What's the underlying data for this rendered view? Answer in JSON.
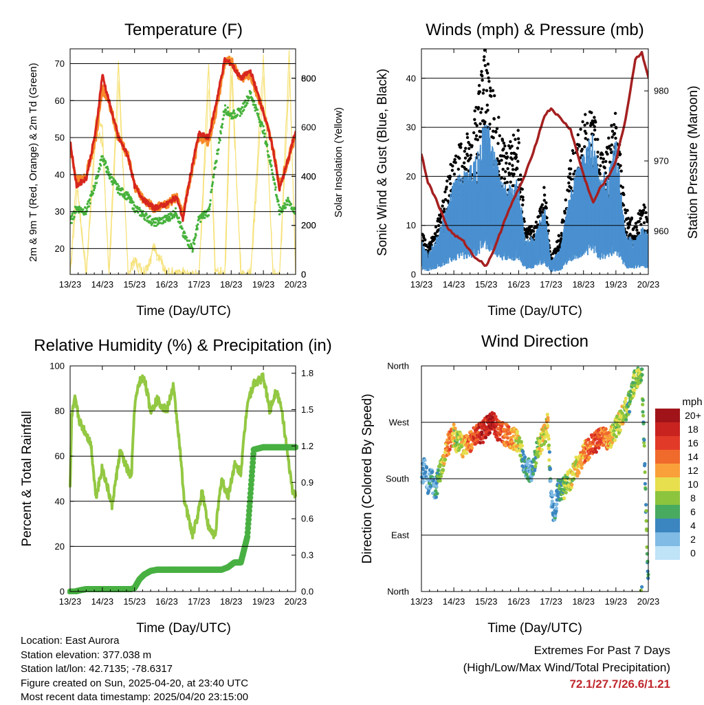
{
  "panels": {
    "temperature": {
      "title": "Temperature (F)",
      "xlabel": "Time (Day/UTC)",
      "ylabel_left": "2m & 9m T (Red, Orange) & 2m Td (Green)",
      "ylabel_right": "Solar Insolation (Yellow)",
      "xticks": [
        "13/23",
        "14/23",
        "15/23",
        "16/23",
        "17/23",
        "18/23",
        "19/23",
        "20/23"
      ],
      "yticks_left": [
        "20",
        "30",
        "40",
        "50",
        "60",
        "70"
      ],
      "yticks_right": [
        "0",
        "200",
        "400",
        "600",
        "800"
      ]
    },
    "winds": {
      "title": "Winds (mph) & Pressure (mb)",
      "xlabel": "Time (Day/UTC)",
      "ylabel_left": "Sonic Wind & Gust (Blue, Black)",
      "ylabel_right": "Station Pressure (Maroon)",
      "xticks": [
        "13/23",
        "14/23",
        "15/23",
        "16/23",
        "17/23",
        "18/23",
        "19/23",
        "20/23"
      ],
      "yticks_left": [
        "0",
        "10",
        "20",
        "30",
        "40"
      ],
      "yticks_right": [
        "960",
        "970",
        "980"
      ]
    },
    "humidity": {
      "title": "Relative Humidity (%) & Precipitation (in)",
      "xlabel": "Time (Day/UTC)",
      "ylabel_left": "Percent & Total Rainfall",
      "xticks": [
        "13/23",
        "14/23",
        "15/23",
        "16/23",
        "17/23",
        "18/23",
        "19/23",
        "20/23"
      ],
      "yticks_left": [
        "0",
        "20",
        "40",
        "60",
        "80",
        "100"
      ],
      "yticks_right": [
        "0.0",
        "0.3",
        "0.6",
        "0.9",
        "1.2",
        "1.5",
        "1.8"
      ]
    },
    "direction": {
      "title": "Wind Direction",
      "xlabel": "Time (Day/UTC)",
      "ylabel_left": "Direction (Colored By Speed)",
      "xticks": [
        "13/23",
        "14/23",
        "15/23",
        "16/23",
        "17/23",
        "18/23",
        "19/23",
        "20/23"
      ],
      "yticks_left": [
        "North",
        "East",
        "South",
        "West",
        "North"
      ],
      "colorbar_title": "mph",
      "colorbar_labels": [
        "20+",
        "18",
        "16",
        "14",
        "12",
        "10",
        "8",
        "6",
        "4",
        "2",
        "0"
      ],
      "colorbar_colors": [
        "#a01419",
        "#c8231f",
        "#e23a28",
        "#f06a2c",
        "#f9a03a",
        "#e7df4e",
        "#8cc43e",
        "#48aa5f",
        "#3b86c0",
        "#7fbbe4",
        "#bfe3f7"
      ]
    }
  },
  "chart_data": [
    {
      "type": "line",
      "title": "Temperature (F)",
      "xlabel": "Time (Day/UTC)",
      "ylabel": "2m & 9m T (Red, Orange) & 2m Td (Green)",
      "y2label": "Solar Insolation (Yellow)",
      "ylim": [
        13,
        74
      ],
      "y2lim": [
        0,
        920
      ],
      "x": [
        13,
        13.2,
        13.5,
        13.8,
        14.0,
        14.2,
        14.5,
        14.8,
        15.0,
        15.3,
        15.6,
        16.0,
        16.3,
        16.5,
        16.8,
        17.0,
        17.3,
        17.5,
        17.8,
        18.0,
        18.3,
        18.6,
        19.0,
        19.3,
        19.5,
        19.8,
        20.0
      ],
      "series": [
        {
          "name": "2m T",
          "color": "#d7261e",
          "values": [
            49,
            37,
            39,
            52,
            67,
            60,
            50,
            45,
            37,
            33,
            31,
            32,
            34,
            28,
            43,
            51,
            50,
            58,
            71,
            70,
            66,
            68,
            57,
            47,
            36,
            45,
            52
          ]
        },
        {
          "name": "9m T",
          "color": "#f7892a",
          "values": [
            48,
            38,
            40,
            50,
            63,
            60,
            50,
            45,
            37,
            33,
            31,
            32,
            34,
            29,
            42,
            50,
            49,
            56,
            70,
            71,
            66,
            67,
            57,
            47,
            37,
            45,
            51
          ]
        },
        {
          "name": "2m Td",
          "color": "#47b23c",
          "values": [
            27,
            31,
            30,
            38,
            45,
            40,
            36,
            34,
            31,
            29,
            27,
            28,
            30,
            24,
            20,
            28,
            30,
            42,
            58,
            56,
            57,
            62,
            52,
            40,
            30,
            33,
            29
          ]
        },
        {
          "name": "Solar Insolation",
          "color": "#f6e27a",
          "axis": "right",
          "values": [
            0,
            400,
            0,
            650,
            600,
            0,
            850,
            0,
            60,
            0,
            120,
            0,
            0,
            0,
            0,
            0,
            860,
            0,
            0,
            900,
            0,
            0,
            880,
            0,
            0,
            900,
            0
          ]
        }
      ]
    },
    {
      "type": "line",
      "title": "Winds (mph) & Pressure (mb)",
      "xlabel": "Time (Day/UTC)",
      "ylabel": "Sonic Wind & Gust (Blue, Black)",
      "y2label": "Station Pressure (Maroon)",
      "ylim": [
        0,
        46
      ],
      "y2lim": [
        953.8,
        986
      ],
      "x": [
        13,
        13.2,
        13.5,
        13.8,
        14.0,
        14.3,
        14.6,
        15.0,
        15.3,
        15.6,
        16.0,
        16.2,
        16.5,
        16.8,
        17.0,
        17.3,
        17.6,
        18.0,
        18.3,
        18.5,
        18.8,
        19.0,
        19.3,
        19.6,
        19.8,
        20.0
      ],
      "series": [
        {
          "name": "Sonic Wind",
          "color": "#4a90d0",
          "values": [
            5,
            3,
            6,
            10,
            14,
            15,
            17,
            24,
            17,
            13,
            14,
            5,
            6,
            10,
            2,
            4,
            13,
            18,
            21,
            14,
            16,
            20,
            6,
            5,
            7,
            6
          ]
        },
        {
          "name": "Gust",
          "color": "#000000",
          "values": [
            8,
            5,
            10,
            17,
            22,
            24,
            28,
            44,
            30,
            24,
            26,
            8,
            9,
            16,
            3,
            8,
            21,
            28,
            30,
            22,
            26,
            30,
            12,
            9,
            13,
            11
          ]
        },
        {
          "name": "Station Pressure",
          "color": "#a52021",
          "axis": "right",
          "values": [
            971,
            967,
            964,
            960.5,
            959.5,
            958.5,
            956.5,
            955,
            958,
            962,
            966,
            968,
            972,
            976.5,
            977.5,
            976,
            974.5,
            968,
            964,
            966,
            968,
            970,
            976,
            984.5,
            985.5,
            982
          ]
        }
      ]
    },
    {
      "type": "line",
      "title": "Relative Humidity (%) & Precipitation (in)",
      "xlabel": "Time (Day/UTC)",
      "ylabel": "Percent & Total Rainfall",
      "ylim": [
        0,
        100
      ],
      "y2lim": [
        0,
        1.86
      ],
      "x": [
        13,
        13.05,
        13.15,
        13.3,
        13.5,
        13.65,
        13.8,
        14.0,
        14.3,
        14.55,
        14.75,
        14.9,
        15.0,
        15.15,
        15.3,
        15.5,
        15.7,
        16.0,
        16.2,
        16.35,
        16.55,
        16.8,
        16.95,
        17.1,
        17.3,
        17.5,
        17.7,
        17.9,
        18.1,
        18.3,
        18.5,
        18.7,
        19.0,
        19.2,
        19.4,
        19.6,
        19.75,
        19.9,
        20.0
      ],
      "series": [
        {
          "name": "Relative Humidity",
          "color": "#93c843",
          "values": [
            45,
            78,
            85,
            75,
            70,
            65,
            42,
            55,
            38,
            62,
            55,
            50,
            82,
            93,
            95,
            80,
            85,
            80,
            91,
            72,
            40,
            25,
            33,
            45,
            28,
            25,
            50,
            42,
            56,
            53,
            84,
            92,
            95,
            80,
            90,
            78,
            60,
            45,
            42
          ]
        },
        {
          "name": "Total Rainfall",
          "color": "#48b042",
          "axis": "right",
          "values": [
            0,
            0,
            0,
            0.01,
            0.02,
            0.02,
            0.02,
            0.02,
            0.02,
            0.02,
            0.02,
            0.02,
            0.03,
            0.1,
            0.14,
            0.17,
            0.18,
            0.18,
            0.18,
            0.18,
            0.18,
            0.18,
            0.18,
            0.18,
            0.18,
            0.18,
            0.18,
            0.2,
            0.24,
            0.24,
            0.45,
            1.17,
            1.19,
            1.19,
            1.19,
            1.19,
            1.19,
            1.19,
            1.19
          ]
        }
      ]
    },
    {
      "type": "scatter",
      "title": "Wind Direction",
      "xlabel": "Time (Day/UTC)",
      "ylabel": "Direction (Colored By Speed)",
      "yticks": [
        "North",
        "East",
        "South",
        "West",
        "North"
      ],
      "ylim": [
        0,
        360
      ],
      "colorbar": {
        "title": "mph",
        "labels": [
          "20+",
          "18",
          "16",
          "14",
          "12",
          "10",
          "8",
          "6",
          "4",
          "2",
          "0"
        ]
      },
      "x": [
        13.0,
        13.1,
        13.2,
        13.3,
        13.4,
        13.5,
        13.6,
        13.7,
        13.8,
        13.9,
        14.0,
        14.1,
        14.2,
        14.3,
        14.5,
        14.7,
        14.9,
        15.0,
        15.2,
        15.4,
        15.6,
        15.8,
        16.0,
        16.2,
        16.4,
        16.6,
        16.8,
        16.9,
        17.0,
        17.1,
        17.2,
        17.4,
        17.6,
        17.8,
        18.0,
        18.2,
        18.4,
        18.6,
        18.8,
        19.0,
        19.2,
        19.4,
        19.6,
        19.8,
        20.0
      ],
      "y": [
        180,
        200,
        170,
        185,
        160,
        175,
        195,
        210,
        230,
        245,
        250,
        235,
        240,
        230,
        240,
        250,
        255,
        265,
        270,
        255,
        250,
        245,
        240,
        200,
        190,
        230,
        250,
        270,
        150,
        120,
        160,
        165,
        180,
        200,
        220,
        230,
        240,
        245,
        240,
        260,
        280,
        300,
        340,
        350,
        10
      ],
      "speed": [
        2,
        3,
        2,
        4,
        3,
        5,
        8,
        10,
        12,
        14,
        10,
        8,
        9,
        11,
        14,
        16,
        18,
        17,
        19,
        16,
        14,
        12,
        10,
        4,
        3,
        9,
        10,
        11,
        3,
        2,
        5,
        7,
        9,
        10,
        12,
        15,
        16,
        14,
        12,
        8,
        10,
        6,
        8,
        7,
        6
      ]
    }
  ],
  "footer": {
    "location": "Location: East Aurora",
    "elevation": "Station elevation: 377.038 m",
    "latlon": "Station lat/lon: 42.7135; -78.6317",
    "created": "Figure created on Sun, 2025-04-20, at 23:40 UTC",
    "recent": "Most recent data timestamp: 2025/04/20 23:15:00"
  },
  "extremes": {
    "title": "Extremes For Past 7 Days",
    "subtitle": "(High/Low/Max Wind/Total Precipitation)",
    "values": "72.1/27.7/26.6/1.21"
  }
}
